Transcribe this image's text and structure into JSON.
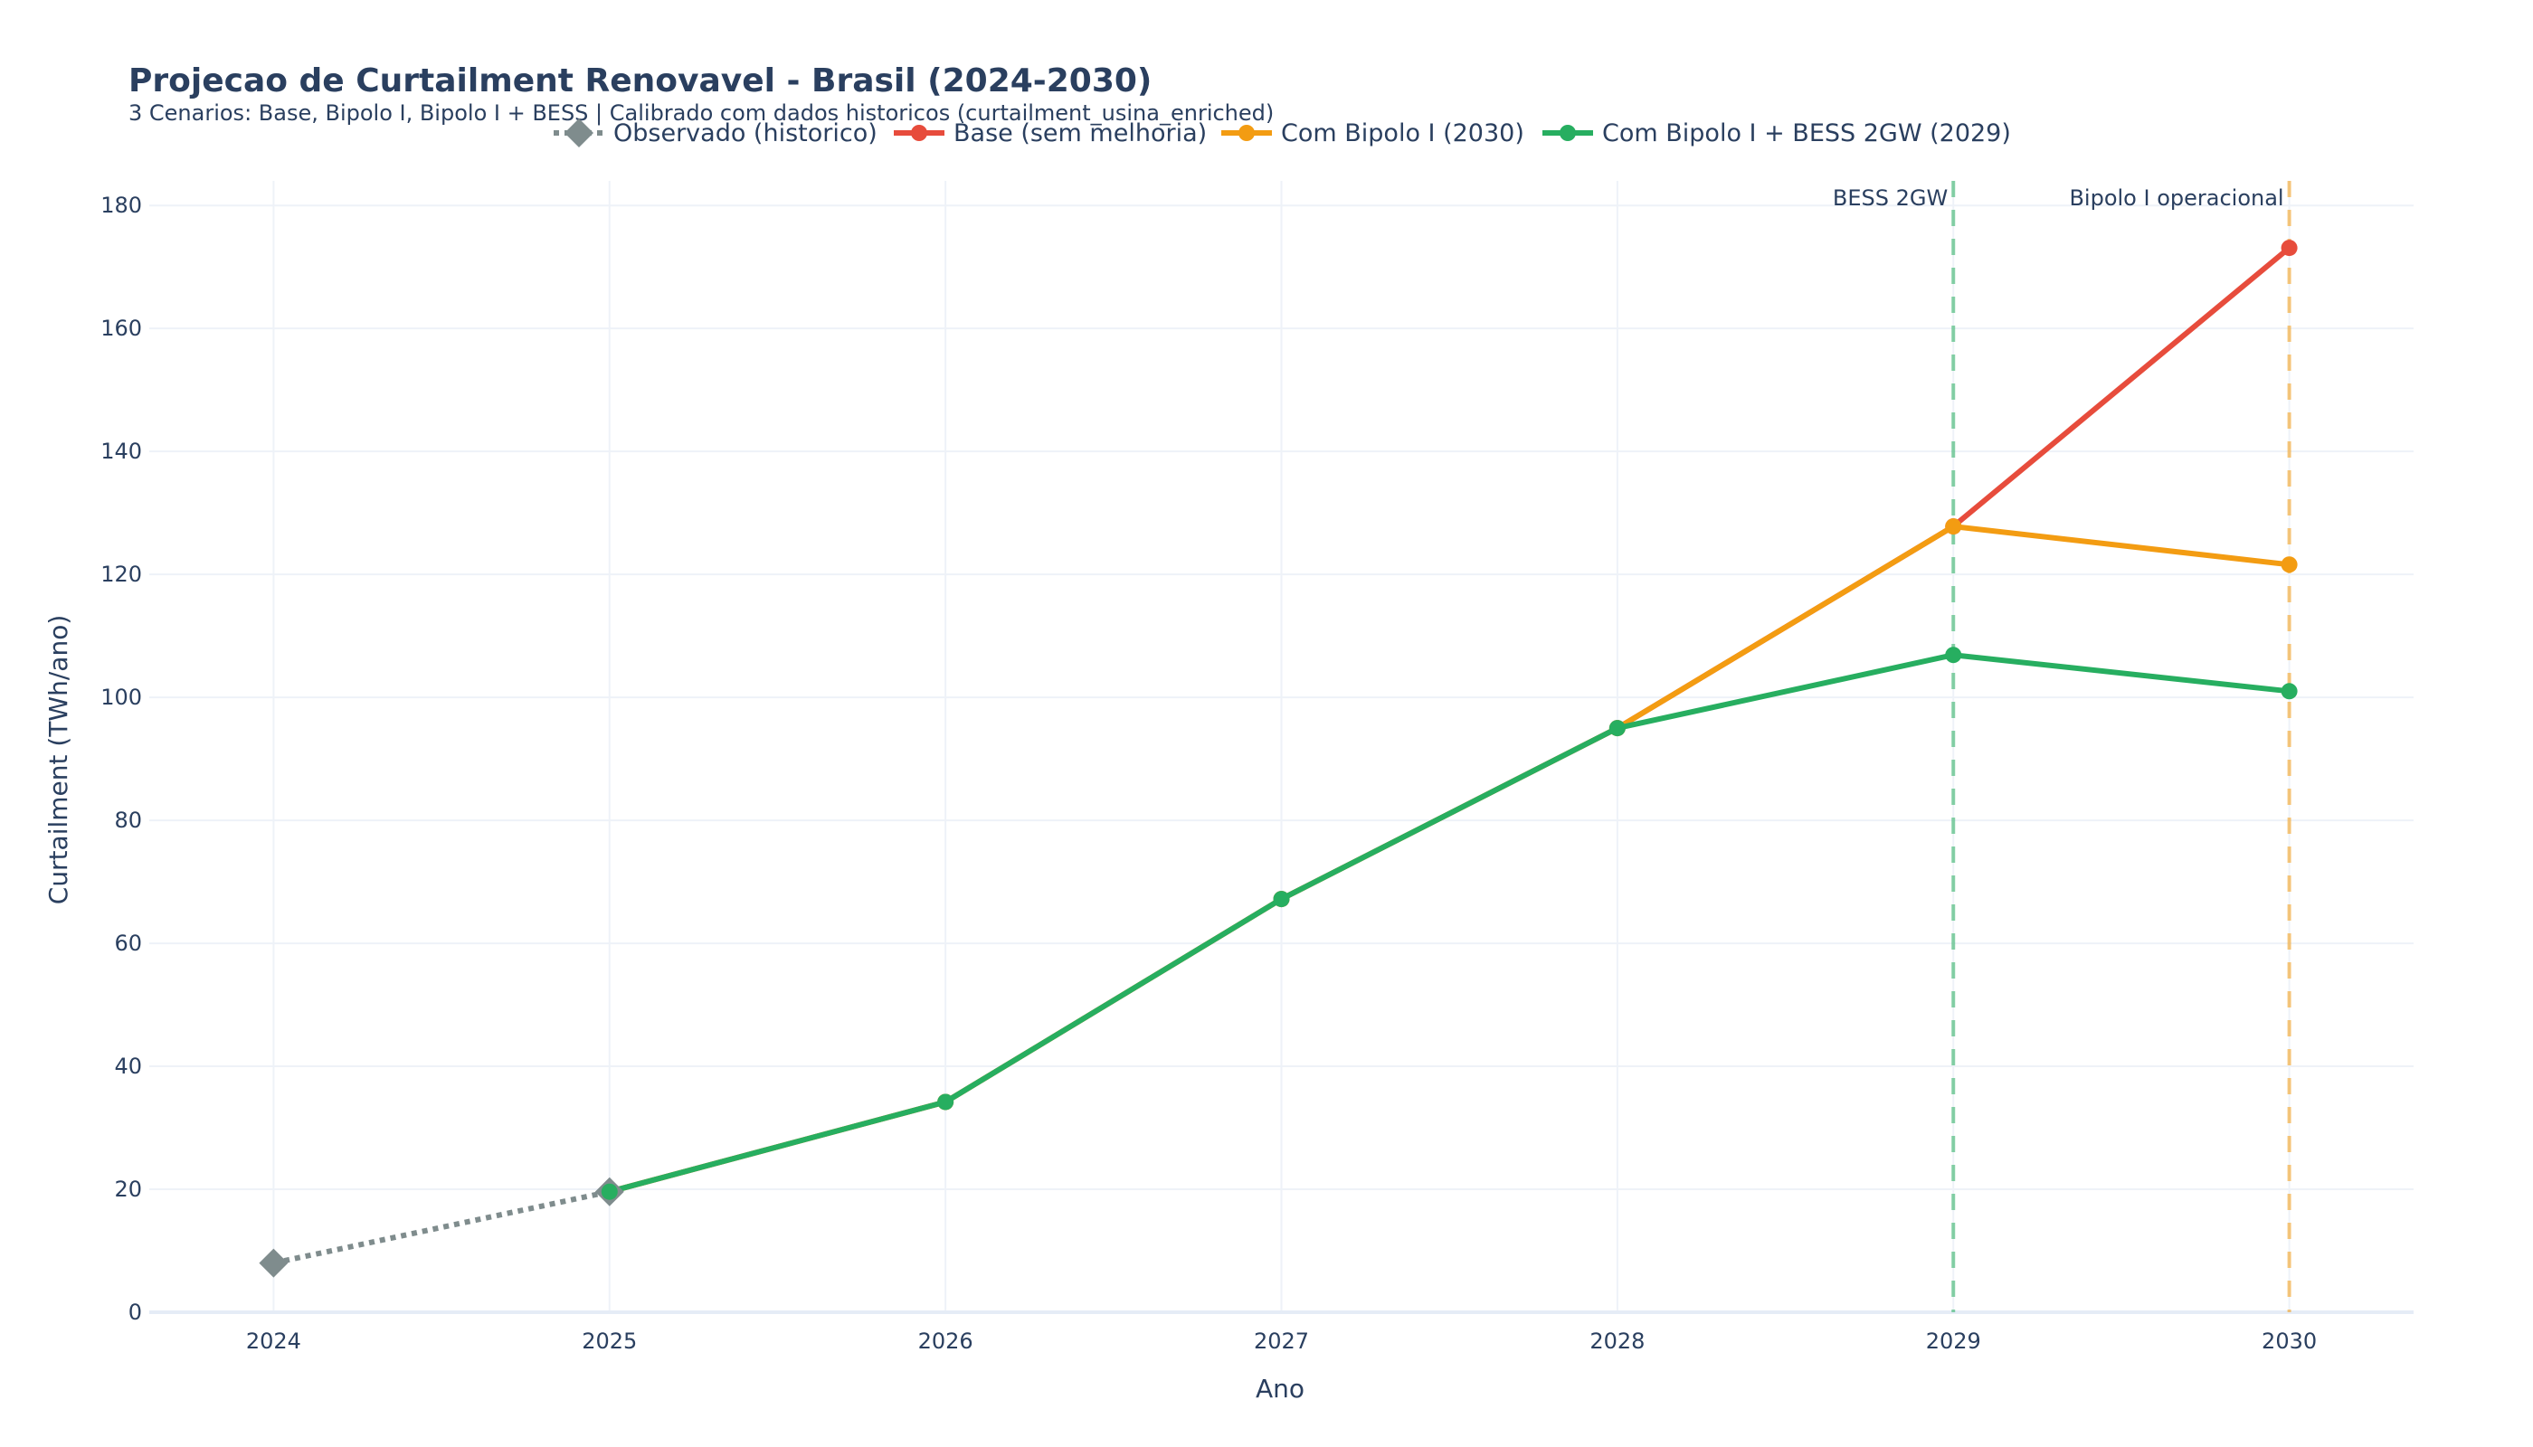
{
  "chart_data": {
    "type": "line",
    "title": "Projecao de Curtailment Renovavel - Brasil (2024-2030)",
    "subtitle": "3 Cenarios: Base, Bipolo I, Bipolo I + BESS | Calibrado com dados historicos (curtailment_usina_enriched)",
    "xlabel": "Ano",
    "ylabel": "Curtailment (TWh/ano)",
    "xlim": [
      2023.63,
      2030.37
    ],
    "ylim": [
      0,
      184
    ],
    "x_ticks": [
      2024,
      2025,
      2026,
      2027,
      2028,
      2029,
      2030
    ],
    "y_ticks": [
      0,
      20,
      40,
      60,
      80,
      100,
      120,
      140,
      160,
      180
    ],
    "grid": true,
    "legend_placement": "top-center",
    "series": [
      {
        "name": "Observado (historico)",
        "color": "#7f8c8d",
        "line_style": "dotted",
        "marker": "diamond",
        "x": [
          2024,
          2025
        ],
        "values": [
          8.0,
          19.6
        ]
      },
      {
        "name": "Base (sem melhoria)",
        "color": "#e74c3c",
        "line_style": "solid",
        "marker": "circle",
        "x": [
          2025,
          2026,
          2027,
          2028,
          2029,
          2030
        ],
        "values": [
          19.6,
          34.2,
          67.2,
          95.0,
          127.8,
          173.1
        ]
      },
      {
        "name": "Com Bipolo I (2030)",
        "color": "#f39c12",
        "line_style": "solid",
        "marker": "circle",
        "x": [
          2025,
          2026,
          2027,
          2028,
          2029,
          2030
        ],
        "values": [
          19.6,
          34.2,
          67.2,
          95.0,
          127.8,
          121.6
        ]
      },
      {
        "name": "Com Bipolo I + BESS 2GW (2029)",
        "color": "#27ae60",
        "line_style": "solid",
        "marker": "circle",
        "x": [
          2025,
          2026,
          2027,
          2028,
          2029,
          2030
        ],
        "values": [
          19.6,
          34.2,
          67.2,
          95.0,
          106.9,
          101.0
        ]
      }
    ],
    "annotations": [
      {
        "text": "BESS 2GW",
        "x": 2029,
        "line_color": "#27ae60",
        "line_style": "dashed"
      },
      {
        "text": "Bipolo I operacional",
        "x": 2030,
        "line_color": "#f39c12",
        "line_style": "dashed"
      }
    ]
  }
}
